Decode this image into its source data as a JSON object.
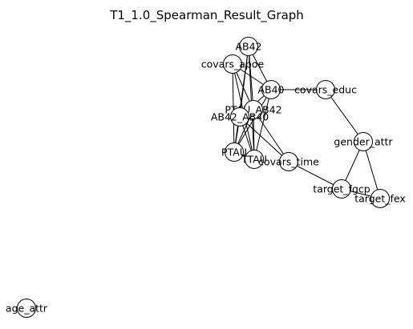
{
  "title": "T1_1.0_Spearman_Result_Graph",
  "colors": {
    "node_fill": "#ffffff",
    "node_stroke": "#000000",
    "edge": "#000000",
    "background": "#ffffff"
  },
  "nodes": [
    {
      "id": "AB42",
      "label": "AB42"
    },
    {
      "id": "covars_apoe",
      "label": "covars_apoe"
    },
    {
      "id": "AB40",
      "label": "AB40"
    },
    {
      "id": "covars_educ",
      "label": "covars_educ"
    },
    {
      "id": "PTAU_AB42",
      "label": "PTAU_AB42"
    },
    {
      "id": "AB42_AB40",
      "label": "AB42_AB40"
    },
    {
      "id": "PTAU",
      "label": "PTAU"
    },
    {
      "id": "TTAU",
      "label": "TTAU"
    },
    {
      "id": "covars_time",
      "label": "covars_time"
    },
    {
      "id": "gender_attr",
      "label": "gender_attr"
    },
    {
      "id": "target_fgcp",
      "label": "target_fgcp"
    },
    {
      "id": "target_fex",
      "label": "target_fex"
    },
    {
      "id": "age_attr",
      "label": "age_attr"
    }
  ],
  "edges": [
    [
      "AB42",
      "AB40"
    ],
    [
      "AB42",
      "PTAU_AB42"
    ],
    [
      "AB42",
      "AB42_AB40"
    ],
    [
      "AB42",
      "PTAU"
    ],
    [
      "AB42",
      "TTAU"
    ],
    [
      "covars_apoe",
      "AB40"
    ],
    [
      "covars_apoe",
      "PTAU_AB42"
    ],
    [
      "covars_apoe",
      "TTAU"
    ],
    [
      "covars_apoe",
      "PTAU"
    ],
    [
      "AB40",
      "covars_educ"
    ],
    [
      "AB40",
      "AB42_AB40"
    ],
    [
      "AB40",
      "TTAU"
    ],
    [
      "AB40",
      "PTAU"
    ],
    [
      "PTAU_AB42",
      "PTAU"
    ],
    [
      "PTAU_AB42",
      "TTAU"
    ],
    [
      "PTAU_AB42",
      "covars_time"
    ],
    [
      "AB42_AB40",
      "PTAU"
    ],
    [
      "AB42_AB40",
      "TTAU"
    ],
    [
      "AB42_AB40",
      "covars_time"
    ],
    [
      "PTAU",
      "TTAU"
    ],
    [
      "covars_educ",
      "gender_attr"
    ],
    [
      "covars_time",
      "target_fgcp"
    ],
    [
      "gender_attr",
      "target_fgcp"
    ],
    [
      "gender_attr",
      "target_fex"
    ],
    [
      "target_fgcp",
      "target_fex"
    ]
  ]
}
